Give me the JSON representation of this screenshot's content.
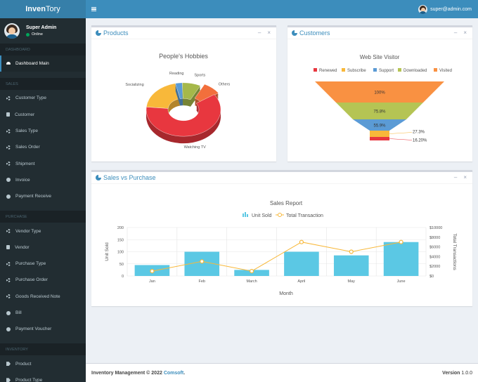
{
  "app": {
    "logo_part1": "Inven",
    "logo_part2": "Tory"
  },
  "user": {
    "name": "Super Admin",
    "status": "Online",
    "email": "super@admin.com"
  },
  "sidebar": {
    "sections": [
      {
        "header": "DASHBOARD",
        "items": [
          {
            "label": "Dashboard Main",
            "icon": "dashboard-icon",
            "active": true
          }
        ]
      },
      {
        "header": "SALES",
        "items": [
          {
            "label": "Customer Type",
            "icon": "gear-icon"
          },
          {
            "label": "Customer",
            "icon": "list-icon"
          },
          {
            "label": "Sales Type",
            "icon": "gear-icon"
          },
          {
            "label": "Sales Order",
            "icon": "gear-icon"
          },
          {
            "label": "Shipment",
            "icon": "gear-icon"
          },
          {
            "label": "Invoice",
            "icon": "circle-icon"
          },
          {
            "label": "Payment Receive",
            "icon": "circle-icon"
          }
        ]
      },
      {
        "header": "PURCHASE",
        "items": [
          {
            "label": "Vendor Type",
            "icon": "gear-icon"
          },
          {
            "label": "Vendor",
            "icon": "list-icon"
          },
          {
            "label": "Purchase Type",
            "icon": "gear-icon"
          },
          {
            "label": "Purchase Order",
            "icon": "gear-icon"
          },
          {
            "label": "Goods Received Note",
            "icon": "gear-icon"
          },
          {
            "label": "Bill",
            "icon": "circle-icon"
          },
          {
            "label": "Payment Voucher",
            "icon": "circle-icon"
          }
        ]
      },
      {
        "header": "INVENTORY",
        "items": [
          {
            "label": "Product",
            "icon": "tag-icon"
          },
          {
            "label": "Product Type",
            "icon": "tag-icon"
          }
        ]
      }
    ]
  },
  "products": {
    "title": "Products",
    "collapse": "–",
    "close": "×"
  },
  "customers": {
    "title": "Customers",
    "collapse": "–",
    "close": "×"
  },
  "sales": {
    "title": "Sales vs Purchase",
    "collapse": "–",
    "close": "×"
  },
  "chart_data": [
    {
      "type": "pie",
      "variant": "3d-donut",
      "title": "People's Hobbies",
      "slices": [
        {
          "label": "Socializing",
          "value": 20,
          "color": "#f8b83a"
        },
        {
          "label": "Reading",
          "value": 3,
          "color": "#5b9bd5"
        },
        {
          "label": "Sports",
          "value": 8,
          "color": "#a5b84a"
        },
        {
          "label": "Others",
          "value": 8,
          "color": "#f26f3c"
        },
        {
          "label": "Watching TV",
          "value": 61,
          "color": "#e8373f"
        }
      ]
    },
    {
      "type": "funnel",
      "title": "Web Site Visitor",
      "legend": [
        {
          "label": "Renewed",
          "color": "#e8373f"
        },
        {
          "label": "Subscribe",
          "color": "#f8b83a"
        },
        {
          "label": "Support",
          "color": "#5b9bd5"
        },
        {
          "label": "Downloaded",
          "color": "#b5c454"
        },
        {
          "label": "Visited",
          "color": "#f99142"
        }
      ],
      "stages": [
        {
          "label": "Visited",
          "value": 100,
          "text": "100%",
          "color": "#f99142"
        },
        {
          "label": "Downloaded",
          "value": 75.8,
          "text": "75.8%",
          "color": "#b5c454"
        },
        {
          "label": "Support",
          "value": 55.9,
          "text": "55.9%",
          "color": "#5b9bd5"
        },
        {
          "label": "Subscribe",
          "value": 27.3,
          "text": "27.3%",
          "color": "#f8b83a"
        },
        {
          "label": "Renewed",
          "value": 16.2,
          "text": "16.20%",
          "color": "#e8373f"
        }
      ]
    },
    {
      "type": "bar+line",
      "title": "Sales Report",
      "xlabel": "Month",
      "ylabel": "Unit Sold",
      "y2label": "Total Transactions",
      "categories": [
        "Jan",
        "Feb",
        "March",
        "April",
        "May",
        "June"
      ],
      "series": [
        {
          "name": "Unit Sold",
          "type": "bar",
          "axis": "left",
          "color": "#5bc8e4",
          "values": [
            45,
            100,
            25,
            100,
            85,
            140
          ]
        },
        {
          "name": "Total Transaction",
          "type": "line",
          "axis": "right",
          "color": "#f8b83a",
          "values": [
            1000,
            3000,
            1000,
            7000,
            5000,
            7000
          ]
        }
      ],
      "ylim": [
        0,
        200
      ],
      "yticks": [
        "0",
        "50",
        "100",
        "150",
        "200"
      ],
      "y2lim": [
        0,
        10000
      ],
      "y2ticks": [
        "$0",
        "$2000",
        "$4000",
        "$6000",
        "$8000",
        "$10000"
      ],
      "grid": true,
      "legend": "top"
    }
  ],
  "footer": {
    "copyright": "Inventory Management © 2022",
    "brand": "Comsoft",
    "brand_suffix": ".",
    "version_label": "Version",
    "version": "1.0.0"
  }
}
